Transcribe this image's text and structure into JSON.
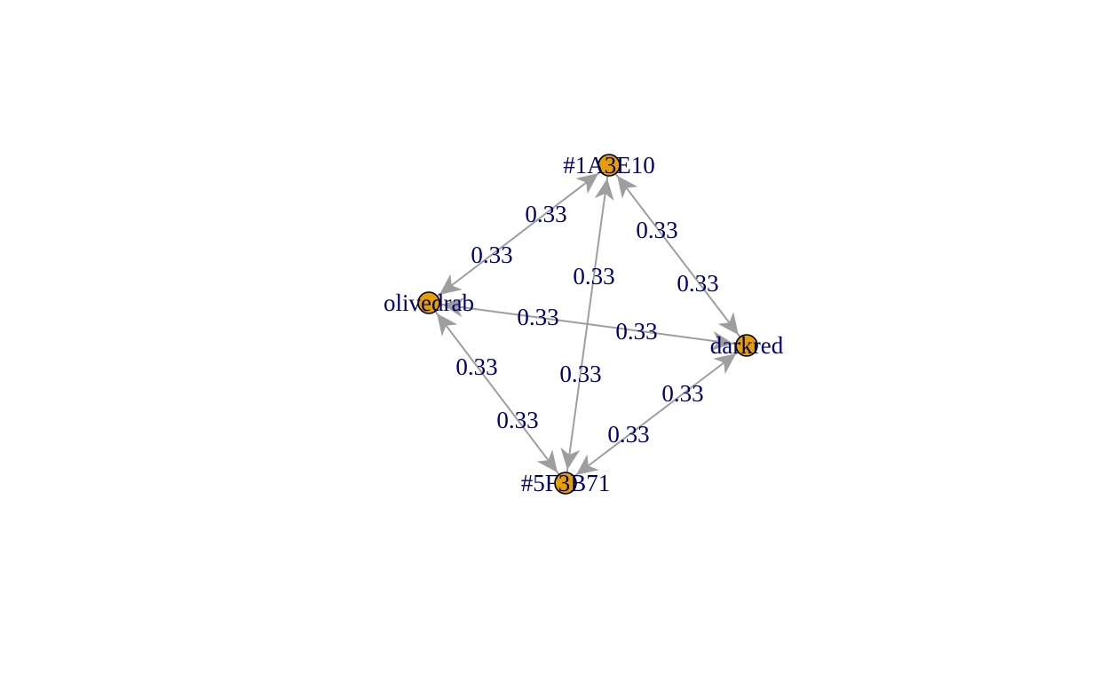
{
  "colors": {
    "background": "#ffffff",
    "node_fill": "#E69F00",
    "node_border": "#000000",
    "edge": "#9E9E9E",
    "label_text": "#00006B"
  },
  "nodes": [
    {
      "id": "1A3E10",
      "label": "#1A3E10"
    },
    {
      "id": "olivedrab",
      "label": "olivedrab"
    },
    {
      "id": "darkred",
      "label": "darkred"
    },
    {
      "id": "5F3B71",
      "label": "#5F3B71"
    }
  ],
  "edges": [
    {
      "from": "1A3E10",
      "to": "olivedrab",
      "label": "0.33"
    },
    {
      "from": "olivedrab",
      "to": "1A3E10",
      "label": "0.33"
    },
    {
      "from": "1A3E10",
      "to": "darkred",
      "label": "0.33"
    },
    {
      "from": "darkred",
      "to": "1A3E10",
      "label": "0.33"
    },
    {
      "from": "1A3E10",
      "to": "5F3B71",
      "label": "0.33"
    },
    {
      "from": "5F3B71",
      "to": "1A3E10",
      "label": "0.33"
    },
    {
      "from": "olivedrab",
      "to": "darkred",
      "label": "0.33"
    },
    {
      "from": "darkred",
      "to": "olivedrab",
      "label": "0.33"
    },
    {
      "from": "olivedrab",
      "to": "5F3B71",
      "label": "0.33"
    },
    {
      "from": "5F3B71",
      "to": "olivedrab",
      "label": "0.33"
    },
    {
      "from": "darkred",
      "to": "5F3B71",
      "label": "0.33"
    },
    {
      "from": "5F3B71",
      "to": "darkred",
      "label": "0.33"
    }
  ]
}
